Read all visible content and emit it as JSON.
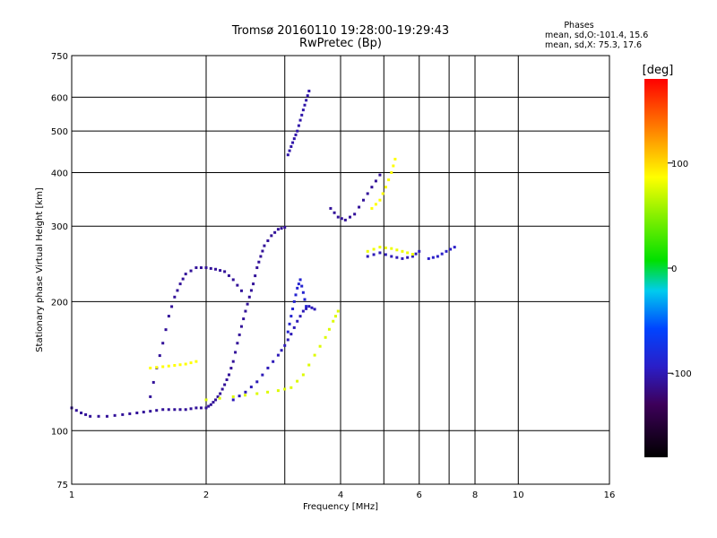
{
  "chart_data": {
    "type": "scatter",
    "title": "Tromsø 20160110 19:28:00-19:29:43",
    "subtitle": "RwPretec (Bp)",
    "xlabel": "Frequency [MHz]",
    "ylabel": "Stationary phase Virtual Height [km]",
    "x_scale": "log",
    "y_scale": "log",
    "xlim": [
      1,
      16
    ],
    "ylim": [
      75,
      750
    ],
    "xticks": [
      1,
      2,
      4,
      6,
      8,
      10,
      16
    ],
    "yticks": [
      75,
      100,
      200,
      300,
      400,
      500,
      600,
      750
    ],
    "extra_vlines": [
      3,
      5,
      7
    ],
    "grid": true,
    "phase_stats": {
      "heading": "Phases",
      "line_o": "mean, sd,O:-101.4, 15.6",
      "line_x": "mean, sd,X:  75.3, 17.6"
    },
    "colorbar": {
      "label": "[deg]",
      "range": [
        -180,
        180
      ],
      "ticks": [
        100,
        0,
        -100
      ]
    },
    "traces": [
      {
        "phase": -110,
        "points": [
          [
            1.0,
            113
          ],
          [
            1.05,
            110
          ],
          [
            1.1,
            108
          ],
          [
            1.2,
            108
          ],
          [
            1.3,
            109
          ],
          [
            1.4,
            110
          ],
          [
            1.5,
            111
          ],
          [
            1.6,
            112
          ],
          [
            1.7,
            112
          ],
          [
            1.8,
            112
          ],
          [
            1.9,
            113
          ],
          [
            2.0,
            113
          ],
          [
            2.05,
            115
          ],
          [
            2.1,
            118
          ],
          [
            2.15,
            122
          ],
          [
            2.2,
            128
          ],
          [
            2.25,
            135
          ],
          [
            2.3,
            145
          ],
          [
            2.35,
            160
          ],
          [
            2.4,
            175
          ],
          [
            2.45,
            190
          ],
          [
            2.5,
            205
          ],
          [
            2.55,
            220
          ],
          [
            2.6,
            240
          ],
          [
            2.65,
            255
          ],
          [
            2.7,
            270
          ],
          [
            2.8,
            285
          ],
          [
            2.9,
            295
          ],
          [
            3.0,
            298
          ]
        ]
      },
      {
        "phase": -110,
        "points": [
          [
            1.5,
            120
          ],
          [
            1.55,
            140
          ],
          [
            1.6,
            160
          ],
          [
            1.65,
            185
          ],
          [
            1.7,
            205
          ],
          [
            1.75,
            220
          ],
          [
            1.8,
            232
          ],
          [
            1.9,
            240
          ],
          [
            2.0,
            240
          ],
          [
            2.1,
            238
          ],
          [
            2.2,
            235
          ],
          [
            2.3,
            225
          ],
          [
            2.4,
            212
          ]
        ]
      },
      {
        "phase": -100,
        "points": [
          [
            2.3,
            118
          ],
          [
            2.45,
            123
          ],
          [
            2.6,
            130
          ],
          [
            2.75,
            140
          ],
          [
            2.9,
            150
          ],
          [
            3.0,
            158
          ],
          [
            3.1,
            168
          ],
          [
            3.2,
            180
          ],
          [
            3.3,
            190
          ],
          [
            3.4,
            195
          ],
          [
            3.5,
            192
          ]
        ]
      },
      {
        "phase": -90,
        "points": [
          [
            3.05,
            170
          ],
          [
            3.1,
            185
          ],
          [
            3.15,
            200
          ],
          [
            3.2,
            215
          ],
          [
            3.25,
            225
          ],
          [
            3.3,
            210
          ],
          [
            3.35,
            195
          ]
        ]
      },
      {
        "phase": -105,
        "points": [
          [
            3.05,
            440
          ],
          [
            3.1,
            460
          ],
          [
            3.15,
            480
          ],
          [
            3.2,
            500
          ],
          [
            3.25,
            530
          ],
          [
            3.3,
            560
          ],
          [
            3.35,
            590
          ],
          [
            3.4,
            620
          ]
        ]
      },
      {
        "phase": -110,
        "points": [
          [
            3.8,
            330
          ],
          [
            3.95,
            315
          ],
          [
            4.1,
            310
          ],
          [
            4.3,
            320
          ],
          [
            4.5,
            345
          ],
          [
            4.7,
            370
          ],
          [
            4.9,
            395
          ]
        ]
      },
      {
        "phase": -100,
        "points": [
          [
            4.6,
            255
          ],
          [
            4.9,
            260
          ],
          [
            5.2,
            255
          ],
          [
            5.5,
            252
          ],
          [
            5.8,
            255
          ],
          [
            6.0,
            262
          ]
        ]
      },
      {
        "phase": 80,
        "points": [
          [
            4.6,
            262
          ],
          [
            4.9,
            268
          ],
          [
            5.2,
            266
          ],
          [
            5.5,
            262
          ],
          [
            5.8,
            258
          ]
        ]
      },
      {
        "phase": 85,
        "points": [
          [
            4.7,
            330
          ],
          [
            4.9,
            345
          ],
          [
            5.05,
            370
          ],
          [
            5.2,
            400
          ],
          [
            5.3,
            430
          ]
        ]
      },
      {
        "phase": 75,
        "points": [
          [
            2.0,
            118
          ],
          [
            2.3,
            120
          ],
          [
            2.6,
            122
          ],
          [
            2.9,
            124
          ],
          [
            3.1,
            126
          ],
          [
            3.3,
            135
          ],
          [
            3.5,
            150
          ],
          [
            3.7,
            165
          ],
          [
            3.85,
            180
          ],
          [
            3.95,
            190
          ]
        ]
      },
      {
        "phase": 85,
        "points": [
          [
            1.5,
            140
          ],
          [
            1.6,
            141
          ],
          [
            1.7,
            142
          ],
          [
            1.8,
            143
          ],
          [
            1.9,
            145
          ]
        ]
      },
      {
        "phase": -95,
        "points": [
          [
            6.3,
            252
          ],
          [
            6.6,
            255
          ],
          [
            6.9,
            262
          ],
          [
            7.2,
            268
          ]
        ]
      }
    ]
  }
}
